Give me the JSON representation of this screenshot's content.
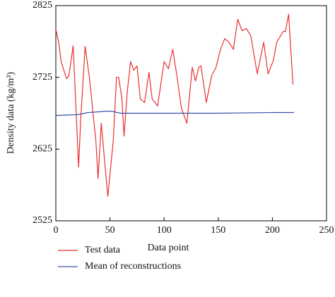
{
  "chart_data": {
    "type": "line",
    "xlabel": "Data point",
    "ylabel": "Density data (kg/m³)",
    "xlim": [
      0,
      250
    ],
    "xticks": [
      0,
      50,
      100,
      150,
      200,
      250
    ],
    "ylim": [
      2525,
      2825
    ],
    "yticks": [
      2525,
      2625,
      2725,
      2825
    ],
    "legend": "bottom",
    "series": [
      {
        "name": "Test data",
        "color": "#e8302f",
        "x": [
          0,
          2.6,
          5,
          10,
          12,
          16,
          20,
          21,
          23,
          27,
          31,
          37,
          39,
          42,
          48,
          53,
          56,
          58,
          61,
          63,
          66,
          69,
          72,
          75,
          78,
          82,
          86,
          89,
          94,
          100,
          104,
          108,
          112,
          116,
          121,
          126,
          129,
          132,
          134,
          139,
          144,
          148,
          152,
          156,
          160,
          164,
          168,
          172,
          176,
          180,
          186,
          192,
          196,
          201,
          204,
          210,
          212,
          215,
          219
        ],
        "values": [
          2792,
          2774,
          2746,
          2723,
          2727,
          2769,
          2636,
          2600,
          2666,
          2768,
          2725,
          2636,
          2584,
          2661,
          2559,
          2636,
          2725,
          2725,
          2695,
          2643,
          2705,
          2747,
          2735,
          2741,
          2695,
          2690,
          2732,
          2695,
          2685,
          2747,
          2737,
          2764,
          2725,
          2682,
          2661,
          2739,
          2720,
          2739,
          2741,
          2690,
          2728,
          2739,
          2764,
          2779,
          2774,
          2764,
          2806,
          2790,
          2793,
          2783,
          2730,
          2774,
          2730,
          2749,
          2774,
          2789,
          2789,
          2813,
          2715
        ]
      },
      {
        "name": "Mean of reconstructions",
        "color": "#3a52a8",
        "x": [
          0,
          20,
          30,
          50,
          60,
          100,
          150,
          200,
          220
        ],
        "values": [
          2672,
          2673,
          2676,
          2678,
          2675,
          2675,
          2675,
          2676,
          2676
        ]
      }
    ]
  }
}
